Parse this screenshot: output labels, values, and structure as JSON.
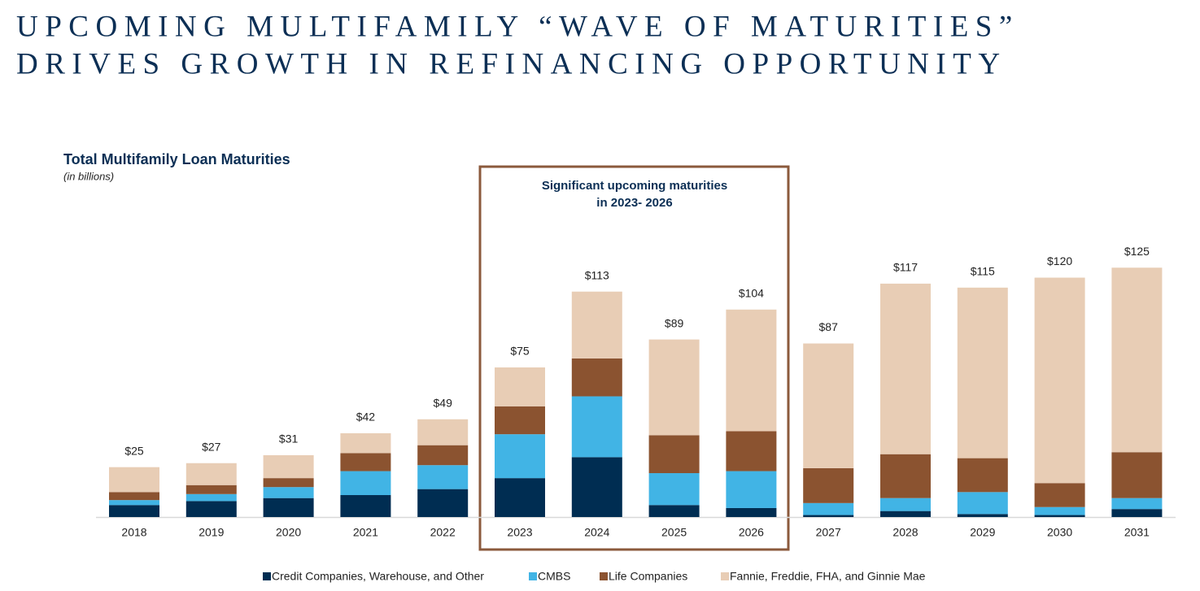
{
  "chart_data": {
    "type": "stacked-bar",
    "title": [
      "UPCOMING MULTIFAMILY “WAVE OF MATURITIES”",
      "DRIVES GROWTH IN REFINANCING OPPORTUNITY"
    ],
    "subtitle": "Total Multifamily Loan Maturities",
    "unit_note": "(in billions)",
    "annotation": [
      "Significant upcoming maturities",
      "in 2023- 2026"
    ],
    "categories": [
      "2018",
      "2019",
      "2020",
      "2021",
      "2022",
      "2023",
      "2024",
      "2025",
      "2026",
      "2027",
      "2028",
      "2029",
      "2030",
      "2031"
    ],
    "series": [
      {
        "name": "Credit Companies, Warehouse, and Other",
        "color": "#002d52",
        "values": [
          6,
          8,
          9.5,
          11,
          14,
          19.5,
          30,
          6,
          4.5,
          1,
          3,
          1.5,
          1,
          4
        ]
      },
      {
        "name": "CMBS",
        "color": "#41b4e5",
        "values": [
          2.5,
          3.5,
          5.5,
          12,
          12,
          22,
          30.5,
          16,
          18.5,
          6,
          6.5,
          11,
          4,
          5.5
        ]
      },
      {
        "name": "Life Companies",
        "color": "#8b5330",
        "values": [
          4,
          4.5,
          4.5,
          9,
          10,
          14,
          19,
          19,
          20,
          17.5,
          22,
          17,
          12,
          23
        ]
      },
      {
        "name": "Fannie, Freddie, FHA, and Ginnie Mae",
        "color": "#e8cdb5",
        "values": [
          12.5,
          11,
          11.5,
          10,
          13,
          19.5,
          33.5,
          48,
          61,
          62.5,
          85.5,
          85.5,
          103,
          92.5
        ]
      }
    ],
    "totals": [
      25,
      27,
      31,
      42,
      49,
      75,
      113,
      89,
      104,
      87,
      117,
      115,
      120,
      125
    ],
    "total_labels": [
      "$25",
      "$27",
      "$31",
      "$42",
      "$49",
      "$75",
      "$113",
      "$89",
      "$104",
      "$87",
      "$117",
      "$115",
      "$120",
      "$125"
    ],
    "ylim": [
      0,
      130
    ]
  }
}
